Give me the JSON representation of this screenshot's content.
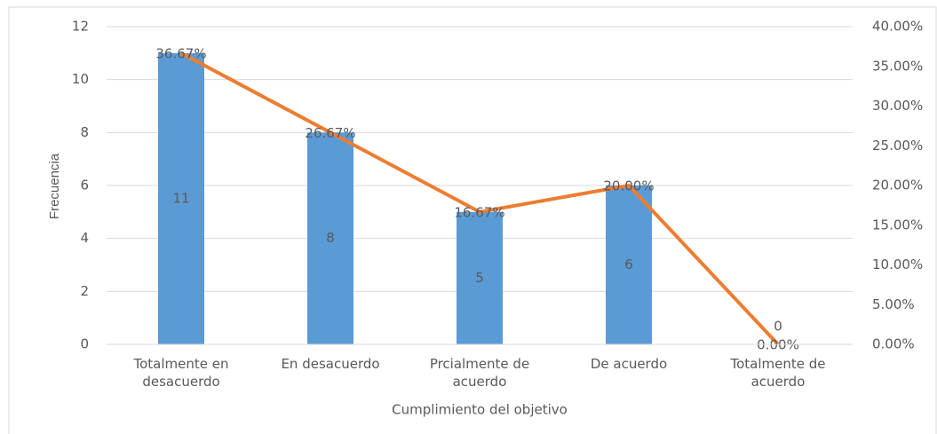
{
  "chart_data": {
    "type": "bar",
    "x_label": "Cumplimiento del objetivo",
    "y_label": "Frecuencia",
    "categories": [
      "Totalmente en desacuerdo",
      "En desacuerdo",
      "Prcialmente de acuerdo",
      "De acuerdo",
      "Totalmente de acuerdo"
    ],
    "series": [
      {
        "type": "bar",
        "color": "#5b9bd5",
        "values": [
          11,
          8,
          5,
          6,
          0
        ]
      },
      {
        "type": "line",
        "axis": "y2",
        "color": "#ed7d31",
        "values": [
          36.67,
          26.67,
          16.67,
          20,
          0
        ],
        "value_labels": [
          "36.67%",
          "26.67%",
          "16.67%",
          "20.00%",
          "0.00%"
        ]
      }
    ],
    "ylim": [
      0,
      12
    ],
    "yticks": [
      0,
      2,
      4,
      6,
      8,
      10,
      12
    ],
    "y2lim": [
      0,
      40
    ],
    "y2ticks": [
      {
        "value": 0,
        "label": "0.00%"
      },
      {
        "value": 5,
        "label": "5.00%"
      },
      {
        "value": 10,
        "label": "10.00%"
      },
      {
        "value": 15,
        "label": "15.00%"
      },
      {
        "value": 20,
        "label": "20.00%"
      },
      {
        "value": 25,
        "label": "25.00%"
      },
      {
        "value": 30,
        "label": "30.00%"
      },
      {
        "value": 35,
        "label": "35.00%"
      },
      {
        "value": 40,
        "label": "40.00%"
      }
    ],
    "grid": true
  }
}
